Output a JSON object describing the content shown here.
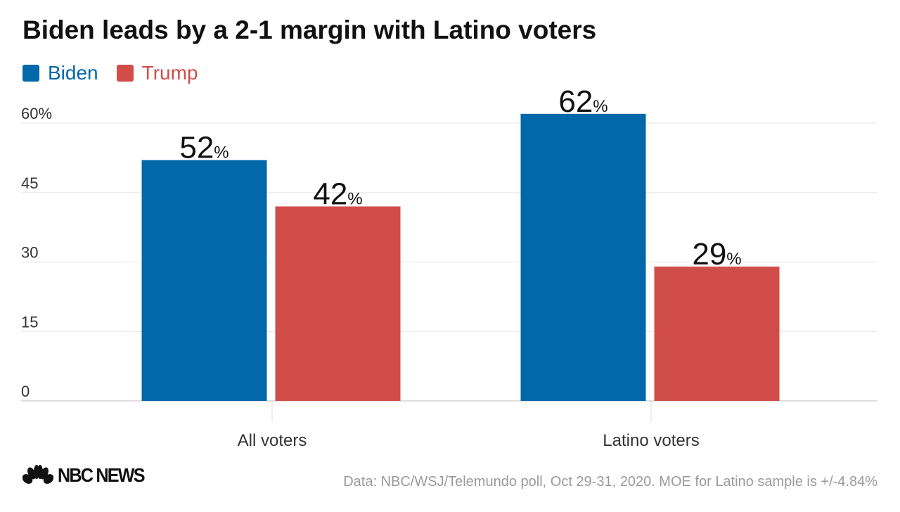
{
  "chart_data": {
    "type": "bar",
    "title": "Biden leads by a 2-1 margin with Latino voters",
    "categories": [
      "All voters",
      "Latino voters"
    ],
    "series": [
      {
        "name": "Biden",
        "color": "#0168aa",
        "values": [
          52,
          62
        ]
      },
      {
        "name": "Trump",
        "color": "#d04d49",
        "values": [
          42,
          29
        ]
      }
    ],
    "yticks": [
      0,
      15,
      30,
      45,
      60
    ],
    "ytick_labels": [
      "0",
      "15",
      "30",
      "45",
      "60%"
    ],
    "ylim": [
      0,
      60
    ],
    "value_suffix": "%",
    "grid": true,
    "legend": "top-left"
  },
  "footer": {
    "logo": "NBC NEWS",
    "source": "Data: NBC/WSJ/Telemundo poll, Oct 29-31, 2020. MOE for Latino sample is +/-4.84%"
  }
}
